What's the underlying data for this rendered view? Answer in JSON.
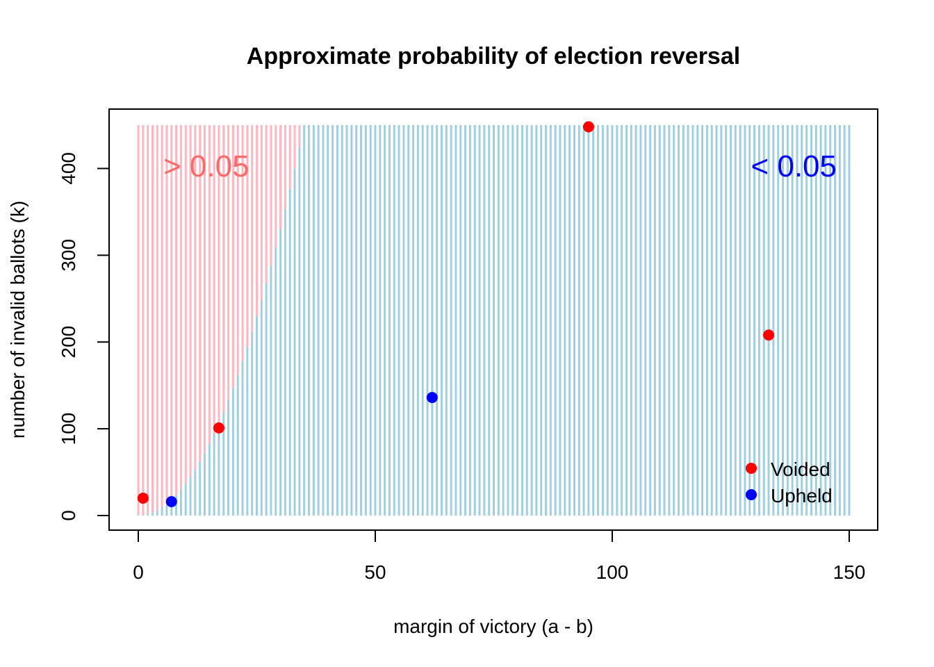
{
  "chart_data": {
    "type": "scatter",
    "title": "Approximate probability of election reversal",
    "xlabel": "margin of victory (a - b)",
    "ylabel": "number of invalid ballots (k)",
    "xlim": [
      0,
      150
    ],
    "ylim": [
      0,
      450
    ],
    "x_ticks": [
      0,
      50,
      100,
      150
    ],
    "y_ticks": [
      0,
      100,
      200,
      300,
      400
    ],
    "grid": false,
    "background_regions": {
      "description": "vertical segments drawn at each integer margin from 0 to 150, colored by whether the reversal probability exceeds 0.05",
      "boundary_margin_at_max_k": 35,
      "high": {
        "label": "> 0.05",
        "color": "#ffb6c1",
        "label_color": "#fa6a6a"
      },
      "low": {
        "label": "< 0.05",
        "color": "#9fcfe0",
        "label_color": "#0000ff"
      }
    },
    "series": [
      {
        "name": "Voided",
        "color": "#ff0000",
        "points": [
          {
            "x": 1,
            "y": 20
          },
          {
            "x": 17,
            "y": 101
          },
          {
            "x": 95,
            "y": 448
          },
          {
            "x": 133,
            "y": 208
          }
        ]
      },
      {
        "name": "Upheld",
        "color": "#0000ff",
        "points": [
          {
            "x": 7,
            "y": 16
          },
          {
            "x": 62,
            "y": 136
          }
        ]
      }
    ],
    "legend_position": "bottom-right"
  }
}
